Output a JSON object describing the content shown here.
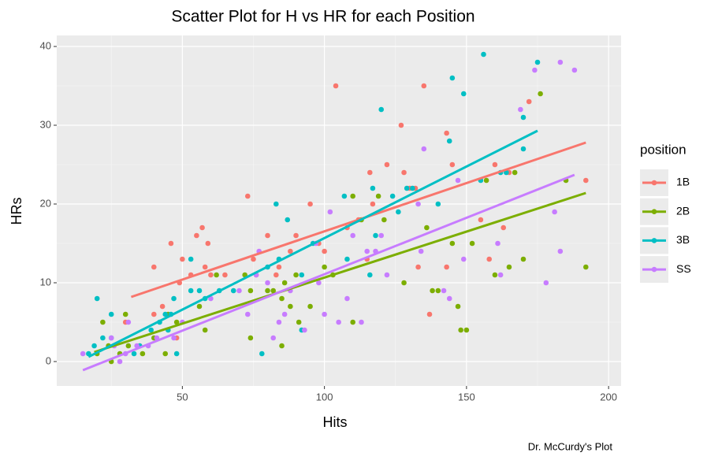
{
  "chart_data": {
    "type": "scatter",
    "title": "Scatter Plot for H vs HR for each Position",
    "x_label": "Hits",
    "y_label": "HRs",
    "legend_title": "position",
    "caption": "Dr. McCurdy's Plot",
    "legend": "right",
    "grid": true,
    "xlim": [
      5.8,
      204.4
    ],
    "ylim": [
      -3.1,
      41.4
    ],
    "xticks": [
      50,
      100,
      150,
      200
    ],
    "yticks": [
      0,
      10,
      20,
      30,
      40
    ],
    "xminor": [
      25,
      75,
      125,
      175
    ],
    "yminor": [
      5,
      15,
      25,
      35
    ],
    "series": [
      {
        "name": "1B",
        "color": "#F8766D",
        "x": [
          104,
          135,
          127,
          143,
          172,
          192,
          160,
          165,
          122,
          116,
          128,
          130,
          132,
          117,
          95,
          73,
          80,
          75,
          90,
          98,
          100,
          108,
          112,
          88,
          83,
          84,
          76,
          57,
          55,
          59,
          50,
          53,
          58,
          60,
          65,
          46,
          43,
          40,
          40,
          48,
          49,
          30,
          35,
          115,
          133,
          137,
          145,
          155,
          158,
          163,
          143
        ],
        "values": [
          35,
          35,
          30,
          29,
          33,
          23,
          25,
          24,
          25,
          24,
          24,
          22,
          22,
          20,
          20,
          21,
          16,
          13,
          16,
          15,
          14,
          17,
          18,
          14,
          11,
          12,
          11,
          17,
          16,
          15,
          13,
          11,
          12,
          11,
          11,
          15,
          7,
          12,
          6,
          3,
          10,
          5,
          2,
          13,
          12,
          6,
          25,
          18,
          13,
          17,
          12
        ],
        "fit": {
          "x": [
            32,
            192
          ],
          "values": [
            8.2,
            27.8
          ]
        }
      },
      {
        "name": "2B",
        "color": "#7CAE00",
        "x": [
          176,
          185,
          192,
          170,
          167,
          157,
          165,
          160,
          145,
          152,
          147,
          148,
          150,
          140,
          136,
          138,
          128,
          121,
          119,
          113,
          110,
          110,
          103,
          100,
          95,
          91,
          88,
          86,
          82,
          80,
          85,
          85,
          90,
          74,
          74,
          72,
          62,
          58,
          56,
          48,
          45,
          44,
          40,
          36,
          30,
          25,
          24,
          22,
          20,
          31,
          28
        ],
        "values": [
          34,
          23,
          12,
          13,
          24,
          23,
          12,
          11,
          15,
          15,
          7,
          4,
          4,
          9,
          17,
          9,
          10,
          18,
          21,
          18,
          21,
          5,
          11,
          12,
          7,
          5,
          7,
          10,
          9,
          9,
          8,
          2,
          11,
          9,
          3,
          11,
          11,
          4,
          7,
          5,
          6,
          1,
          3,
          1,
          6,
          0,
          2,
          5,
          1,
          2,
          1
        ],
        "fit": {
          "x": [
            19,
            192
          ],
          "values": [
            1.2,
            21.4
          ]
        }
      },
      {
        "name": "3B",
        "color": "#00BFC4",
        "x": [
          156,
          175,
          145,
          149,
          170,
          170,
          144,
          140,
          120,
          117,
          124,
          126,
          131,
          129,
          118,
          116,
          108,
          107,
          96,
          92,
          92,
          87,
          83,
          84,
          78,
          80,
          68,
          63,
          58,
          56,
          53,
          53,
          48,
          46,
          47,
          44,
          45,
          42,
          39,
          33,
          35,
          25,
          20,
          22,
          19,
          25,
          17,
          155,
          162,
          164
        ],
        "values": [
          39,
          38,
          36,
          34,
          31,
          27,
          28,
          20,
          32,
          22,
          21,
          19,
          22,
          22,
          16,
          11,
          13,
          21,
          15,
          11,
          4,
          18,
          20,
          13,
          1,
          12,
          9,
          9,
          8,
          9,
          13,
          9,
          1,
          6,
          8,
          6,
          4,
          5,
          4,
          1,
          2,
          3,
          8,
          3,
          2,
          6,
          1,
          23,
          24,
          24
        ],
        "fit": {
          "x": [
            17,
            175
          ],
          "values": [
            0.6,
            29.3
          ]
        }
      },
      {
        "name": "SS",
        "color": "#C77CFF",
        "x": [
          183,
          188,
          174,
          169,
          181,
          178,
          183,
          162,
          161,
          149,
          147,
          144,
          142,
          135,
          134,
          133,
          122,
          120,
          118,
          115,
          113,
          110,
          108,
          105,
          102,
          100,
          98,
          97,
          93,
          88,
          86,
          84,
          82,
          80,
          77,
          76,
          73,
          70,
          60,
          47,
          41,
          38,
          34,
          31,
          28,
          25,
          15,
          30,
          26,
          50
        ],
        "values": [
          38,
          37,
          37,
          32,
          19,
          10,
          14,
          11,
          15,
          13,
          23,
          8,
          9,
          27,
          14,
          20,
          11,
          16,
          14,
          14,
          5,
          16,
          8,
          5,
          19,
          6,
          10,
          15,
          4,
          9,
          6,
          5,
          3,
          10,
          14,
          11,
          6,
          9,
          8,
          3,
          3,
          2,
          2,
          5,
          0,
          3,
          1,
          1,
          2,
          5
        ],
        "fit": {
          "x": [
            15,
            188
          ],
          "values": [
            -1.1,
            23.7
          ]
        }
      }
    ]
  }
}
